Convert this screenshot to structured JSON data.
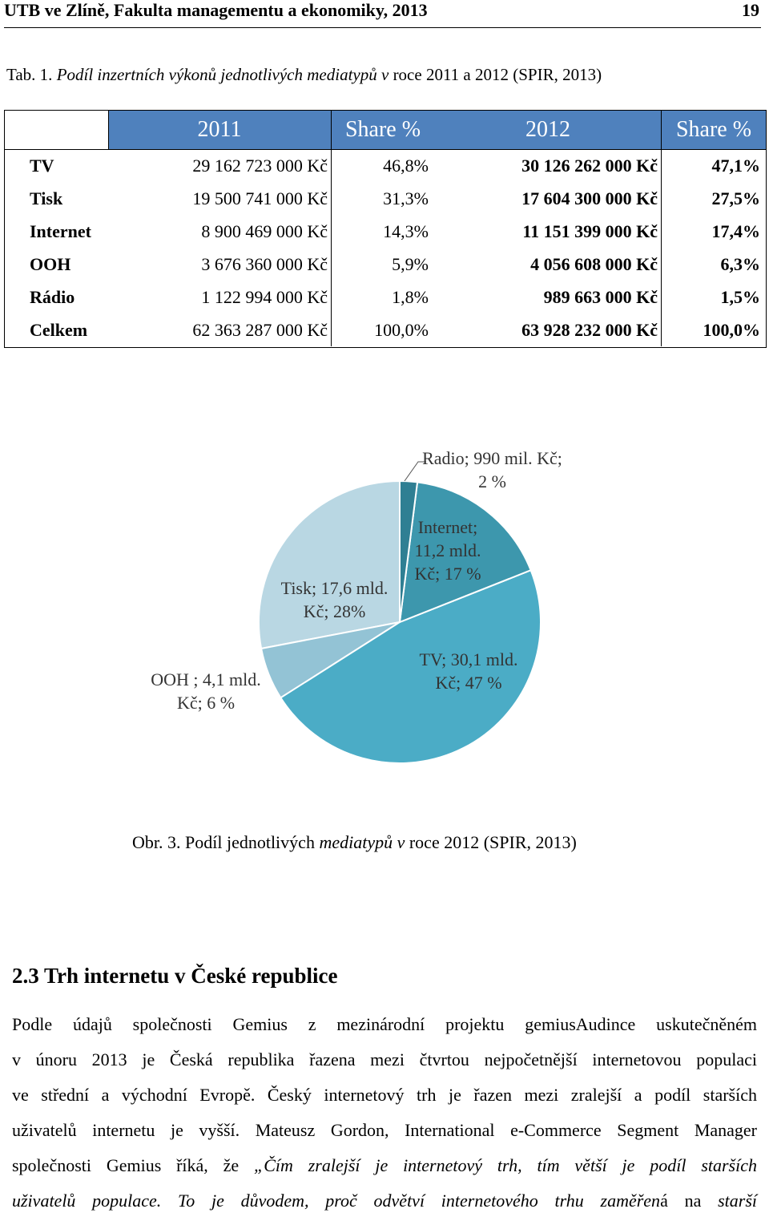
{
  "header": {
    "title": "UTB ve Zlíně, Fakulta managementu a ekonomiky, 2013",
    "page": "19"
  },
  "table_caption": [
    {
      "text": "Tab. 1. "
    },
    {
      "text": "Podíl inzertních výkonů jednotlivých mediatypů v",
      "italic": true
    },
    {
      "text": " roce 2011 a 2012 (SPIR, 2013)"
    }
  ],
  "table": {
    "columns": [
      "2011",
      "Share %",
      "2012",
      "Share %"
    ],
    "rows": [
      [
        "TV",
        "29 162 723 000 Kč",
        "46,8%",
        "30 126 262 000 Kč",
        "47,1%"
      ],
      [
        "Tisk",
        "19 500 741 000 Kč",
        "31,3%",
        "17 604 300 000 Kč",
        "27,5%"
      ],
      [
        "Internet",
        "8 900 469 000 Kč",
        "14,3%",
        "11 151 399 000 Kč",
        "17,4%"
      ],
      [
        "OOH",
        "3 676 360 000 Kč",
        "5,9%",
        "4 056 608 000 Kč",
        "6,3%"
      ],
      [
        "Rádio",
        "1 122 994 000 Kč",
        "1,8%",
        "989 663 000 Kč",
        "1,5%"
      ],
      [
        "Celkem",
        "62 363 287 000 Kč",
        "100,0%",
        "63 928 232 000 Kč",
        "100,0%"
      ]
    ]
  },
  "chart_data": {
    "type": "pie",
    "values": [
      2,
      17,
      47,
      6,
      28
    ],
    "value_labels": [
      "Radio; 990 mil. Kč; 2 %",
      "Internet; 11,2 mld. Kč; 17 %",
      "TV; 30,1 mld. Kč; 47 %",
      "OOH ; 4,1 mld. Kč; 6 %",
      "Tisk; 17,6 mld. Kč; 28%"
    ],
    "colors": [
      "#2f7f93",
      "#3d97ad",
      "#4bacc6",
      "#93c3d5",
      "#b9d7e3"
    ]
  },
  "figure_caption": [
    {
      "text": "Obr. 3. Podíl jednotlivých "
    },
    {
      "text": "mediatypů v",
      "italic": true
    },
    {
      "text": " roce 2012 (SPIR, 2013)"
    }
  ],
  "section_heading": "2.3 Trh internetu v České republice",
  "paragraph": {
    "lines": [
      [
        {
          "text": "Podle údajů společnosti Gemius z mezinárodní projektu gemiusAudince uskutečněném"
        }
      ],
      [
        {
          "text": "v únoru 2013 je Česká republika řazena mezi čtvrtou nejpočetnější internetovou populaci"
        }
      ],
      [
        {
          "text": "ve střední a východní Evropě. Český internetový trh je řazen mezi zralejší a podíl starších"
        }
      ],
      [
        {
          "text": "uživatelů internetu je vyšší. Mateusz Gordon, International e-Commerce Segment Manager"
        }
      ],
      [
        {
          "text": "společnosti Gemius říká, že "
        },
        {
          "text": "„Čím zralejší je internetový trh, tím větší je podíl starších",
          "italic": true
        }
      ],
      [
        {
          "text": "uživatelů populace. To je důvodem, proč odvětví internetového trhu zaměřen",
          "italic": true
        },
        {
          "text": "á na"
        },
        {
          "text": " starší",
          "italic": true
        }
      ]
    ]
  }
}
